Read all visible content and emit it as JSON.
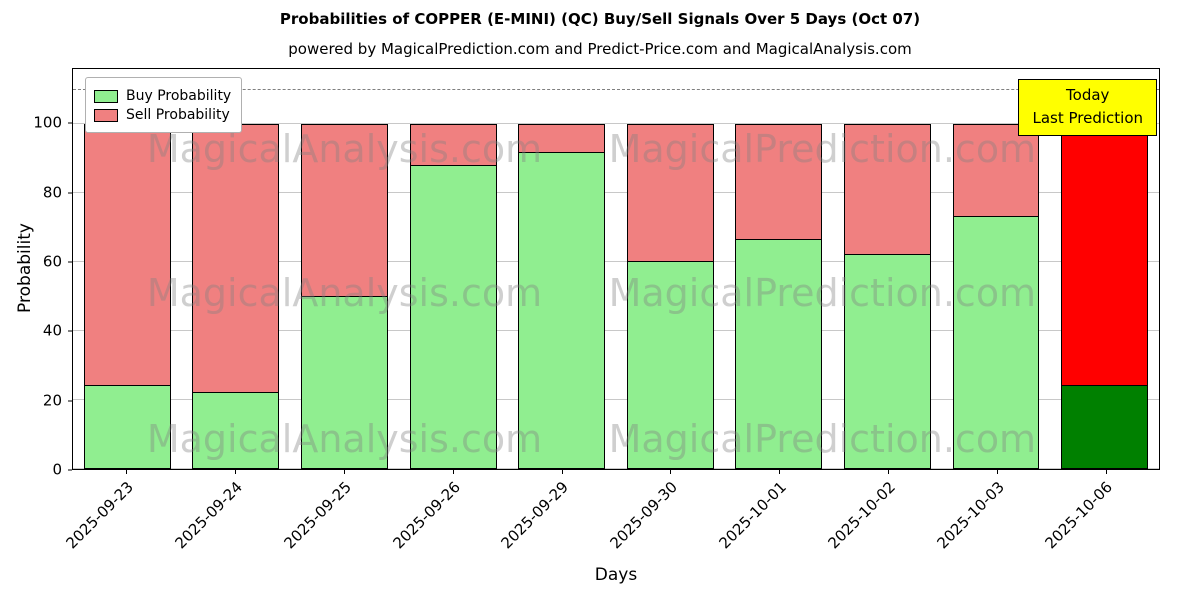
{
  "subtitle": "powered by MagicalPrediction.com and Predict-Price.com and MagicalAnalysis.com",
  "annotation": {
    "line1": "Today",
    "line2": "Last Prediction",
    "bg_color": "#ffff00"
  },
  "legend": {
    "items": [
      {
        "label": "Buy Probability",
        "color": "#90ee90"
      },
      {
        "label": "Sell Probability",
        "color": "#f08080"
      }
    ]
  },
  "watermarks": {
    "left": "MagicalAnalysis.com",
    "right": "MagicalPrediction.com"
  },
  "chart_data": {
    "type": "bar",
    "stacked": true,
    "title": "Probabilities of COPPER (E-MINI) (QC) Buy/Sell Signals Over 5 Days (Oct 07)",
    "xlabel": "Days",
    "ylabel": "Probability",
    "ylim": [
      0,
      116
    ],
    "yticks": [
      0,
      20,
      40,
      60,
      80,
      100
    ],
    "grid": true,
    "legend_position": "upper left",
    "dashed_line_y": 110,
    "categories": [
      "2025-09-23",
      "2025-09-24",
      "2025-09-25",
      "2025-09-26",
      "2025-09-29",
      "2025-09-30",
      "2025-10-01",
      "2025-10-02",
      "2025-10-03",
      "2025-10-06"
    ],
    "series": [
      {
        "name": "Buy Probability",
        "values": [
          24,
          22,
          50,
          88,
          91.5,
          60,
          66.5,
          62,
          73,
          24
        ]
      },
      {
        "name": "Sell Probability",
        "values": [
          76,
          78,
          50,
          12,
          8.5,
          40,
          33.5,
          38,
          27,
          76
        ]
      }
    ],
    "colors": {
      "buy": "#90ee90",
      "sell": "#f08080",
      "buy_last": "#008000",
      "sell_last": "#ff0000",
      "bar_edge": "#000000"
    }
  }
}
